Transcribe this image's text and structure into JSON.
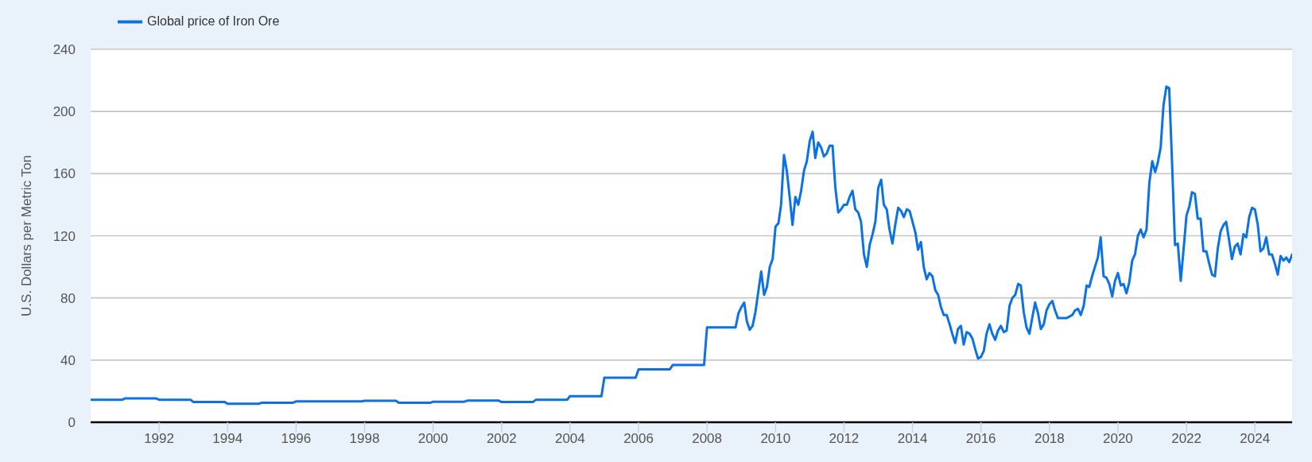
{
  "chart_data": {
    "type": "line",
    "ylabel": "U.S. Dollars per Metric Ton",
    "legend": "top left",
    "grid": "y",
    "xlim": [
      "1990-01",
      "2025-02"
    ],
    "xticks": [
      "1992",
      "1994",
      "1996",
      "1998",
      "2000",
      "2002",
      "2004",
      "2006",
      "2008",
      "2010",
      "2012",
      "2014",
      "2016",
      "2018",
      "2020",
      "2022",
      "2024"
    ],
    "ylim": [
      0,
      240
    ],
    "yticks": [
      0,
      40,
      80,
      120,
      160,
      200,
      240
    ],
    "x": [
      "1990-01",
      "1990-12",
      "1991-01",
      "1991-12",
      "1992-01",
      "1992-12",
      "1993-01",
      "1993-12",
      "1994-01",
      "1994-12",
      "1995-01",
      "1995-12",
      "1996-01",
      "1996-12",
      "1997-01",
      "1997-12",
      "1998-01",
      "1998-12",
      "1999-01",
      "1999-12",
      "2000-01",
      "2000-12",
      "2001-01",
      "2001-12",
      "2002-01",
      "2002-12",
      "2003-01",
      "2003-12",
      "2004-01",
      "2004-12",
      "2005-01",
      "2005-12",
      "2006-01",
      "2006-12",
      "2007-01",
      "2007-12",
      "2008-01",
      "2008-11",
      "2008-12",
      "2009-01",
      "2009-02",
      "2009-03",
      "2009-04",
      "2009-05",
      "2009-06",
      "2009-07",
      "2009-08",
      "2009-09",
      "2009-10",
      "2009-11",
      "2009-12",
      "2010-01",
      "2010-02",
      "2010-03",
      "2010-04",
      "2010-05",
      "2010-06",
      "2010-07",
      "2010-08",
      "2010-09",
      "2010-10",
      "2010-11",
      "2010-12",
      "2011-01",
      "2011-02",
      "2011-03",
      "2011-04",
      "2011-05",
      "2011-06",
      "2011-07",
      "2011-08",
      "2011-09",
      "2011-10",
      "2011-11",
      "2011-12",
      "2012-01",
      "2012-02",
      "2012-03",
      "2012-04",
      "2012-05",
      "2012-06",
      "2012-07",
      "2012-08",
      "2012-09",
      "2012-10",
      "2012-11",
      "2012-12",
      "2013-01",
      "2013-02",
      "2013-03",
      "2013-04",
      "2013-05",
      "2013-06",
      "2013-07",
      "2013-08",
      "2013-09",
      "2013-10",
      "2013-11",
      "2013-12",
      "2014-01",
      "2014-02",
      "2014-03",
      "2014-04",
      "2014-05",
      "2014-06",
      "2014-07",
      "2014-08",
      "2014-09",
      "2014-10",
      "2014-11",
      "2014-12",
      "2015-01",
      "2015-02",
      "2015-03",
      "2015-04",
      "2015-05",
      "2015-06",
      "2015-07",
      "2015-08",
      "2015-09",
      "2015-10",
      "2015-11",
      "2015-12",
      "2016-01",
      "2016-02",
      "2016-03",
      "2016-04",
      "2016-05",
      "2016-06",
      "2016-07",
      "2016-08",
      "2016-09",
      "2016-10",
      "2016-11",
      "2016-12",
      "2017-01",
      "2017-02",
      "2017-03",
      "2017-04",
      "2017-05",
      "2017-06",
      "2017-07",
      "2017-08",
      "2017-09",
      "2017-10",
      "2017-11",
      "2017-12",
      "2018-01",
      "2018-02",
      "2018-03",
      "2018-04",
      "2018-05",
      "2018-06",
      "2018-07",
      "2018-08",
      "2018-09",
      "2018-10",
      "2018-11",
      "2018-12",
      "2019-01",
      "2019-02",
      "2019-03",
      "2019-04",
      "2019-05",
      "2019-06",
      "2019-07",
      "2019-08",
      "2019-09",
      "2019-10",
      "2019-11",
      "2019-12",
      "2020-01",
      "2020-02",
      "2020-03",
      "2020-04",
      "2020-05",
      "2020-06",
      "2020-07",
      "2020-08",
      "2020-09",
      "2020-10",
      "2020-11",
      "2020-12",
      "2021-01",
      "2021-02",
      "2021-03",
      "2021-04",
      "2021-05",
      "2021-06",
      "2021-07",
      "2021-08",
      "2021-09",
      "2021-10",
      "2021-11",
      "2021-12",
      "2022-01",
      "2022-02",
      "2022-03",
      "2022-04",
      "2022-05",
      "2022-06",
      "2022-07",
      "2022-08",
      "2022-09",
      "2022-10",
      "2022-11",
      "2022-12",
      "2023-01",
      "2023-02",
      "2023-03",
      "2023-04",
      "2023-05",
      "2023-06",
      "2023-07",
      "2023-08",
      "2023-09",
      "2023-10",
      "2023-11",
      "2023-12",
      "2024-01",
      "2024-02",
      "2024-03",
      "2024-04",
      "2024-05",
      "2024-06",
      "2024-07",
      "2024-08",
      "2024-09",
      "2024-10",
      "2024-11",
      "2024-12",
      "2025-01",
      "2025-02"
    ],
    "series": [
      {
        "name": "Global price of Iron Ore",
        "color": "#0b72e6",
        "values": [
          14.4,
          14.4,
          15.3,
          15.3,
          14.5,
          14.5,
          13,
          13,
          11.9,
          11.9,
          12.6,
          12.6,
          13.4,
          13.4,
          13.4,
          13.4,
          13.8,
          13.8,
          12.5,
          12.5,
          13.2,
          13.2,
          13.9,
          13.9,
          13,
          13,
          14.4,
          14.4,
          16.8,
          16.8,
          28.7,
          28.7,
          34,
          34,
          36.9,
          36.9,
          61,
          61,
          70,
          74,
          77,
          65,
          59.5,
          62,
          71,
          84,
          97,
          82,
          87,
          100,
          105,
          126,
          128,
          140,
          172,
          162,
          145,
          127,
          145,
          140,
          149,
          162,
          168,
          181,
          187,
          170,
          180,
          177,
          171,
          173,
          178,
          178,
          151,
          135,
          137,
          140,
          140,
          145,
          149,
          137,
          135,
          129,
          108,
          100,
          114,
          121,
          129,
          151,
          156,
          140,
          137,
          124,
          115,
          127,
          138,
          136,
          132,
          137,
          136,
          129,
          122,
          111,
          116,
          100,
          92,
          96,
          94,
          85,
          82,
          74,
          69,
          69,
          63,
          57,
          51,
          60,
          62,
          50,
          58,
          57,
          54,
          47,
          41,
          42,
          46,
          57,
          63,
          57,
          53,
          59,
          62,
          58,
          59,
          75,
          80,
          82,
          89,
          88,
          71,
          61,
          57,
          67,
          77,
          70,
          60,
          63,
          72,
          76,
          78,
          72,
          67,
          67,
          67,
          67,
          68,
          69,
          72,
          73,
          69,
          75,
          88,
          87,
          94,
          100,
          106,
          119,
          94,
          93,
          89,
          81,
          91,
          96,
          88,
          89,
          83,
          90,
          104,
          108,
          120,
          124,
          119,
          124,
          154,
          168,
          161,
          167,
          177,
          204,
          216,
          215,
          166,
          114,
          115,
          91,
          111,
          133,
          139,
          148,
          147,
          131,
          131,
          110,
          110,
          102,
          95,
          94,
          112,
          123,
          127,
          129,
          117,
          105,
          113,
          115,
          108,
          121,
          119,
          132,
          138,
          137,
          127,
          110,
          112,
          119,
          108,
          108,
          102,
          95,
          107,
          104,
          106,
          103,
          108
        ]
      }
    ]
  }
}
